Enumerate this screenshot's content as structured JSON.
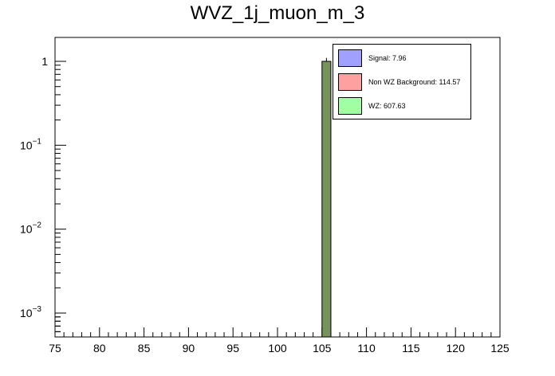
{
  "chart_data": {
    "type": "bar",
    "title": "WVZ_1j_muon_m_3",
    "xlabel": "",
    "ylabel": "",
    "xlim": [
      75,
      125
    ],
    "ylim": [
      0.0005,
      2
    ],
    "yscale": "log",
    "x_ticks": [
      "75",
      "80",
      "85",
      "90",
      "95",
      "100",
      "105",
      "110",
      "115",
      "120",
      "125"
    ],
    "y_ticks": [
      {
        "value": 1,
        "base": "1",
        "exp": ""
      },
      {
        "value": 0.1,
        "base": "10",
        "exp": "−1"
      },
      {
        "value": 0.01,
        "base": "10",
        "exp": "−2"
      },
      {
        "value": 0.001,
        "base": "10",
        "exp": "−3"
      }
    ],
    "bins": [
      {
        "x_low": 105,
        "x_high": 106,
        "value": 1.0,
        "error": 0.1
      }
    ],
    "series": [
      {
        "name": "Signal: 7.96",
        "color": "#a0a0ff"
      },
      {
        "name": "Non WZ Background: 114.57",
        "color": "#ffa0a0"
      },
      {
        "name": "WZ: 607.63",
        "color": "#a0ffa0"
      }
    ],
    "bar_fill_color": "#77925c",
    "legend_position": "top-right",
    "grid": false
  }
}
